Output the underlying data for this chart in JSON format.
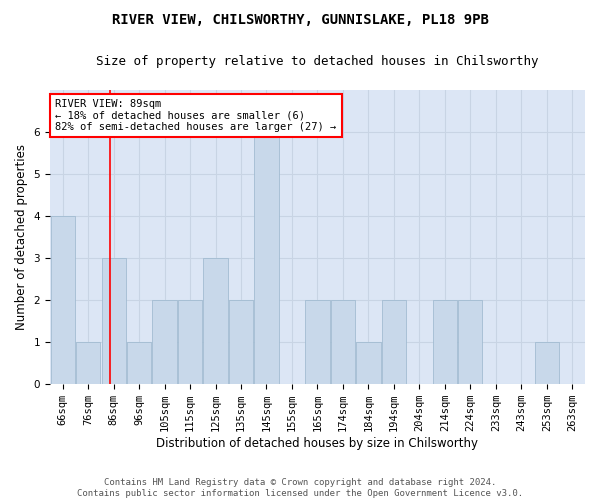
{
  "title": "RIVER VIEW, CHILSWORTHY, GUNNISLAKE, PL18 9PB",
  "subtitle": "Size of property relative to detached houses in Chilsworthy",
  "xlabel": "Distribution of detached houses by size in Chilsworthy",
  "ylabel": "Number of detached properties",
  "categories": [
    "66sqm",
    "76sqm",
    "86sqm",
    "96sqm",
    "105sqm",
    "115sqm",
    "125sqm",
    "135sqm",
    "145sqm",
    "155sqm",
    "165sqm",
    "174sqm",
    "184sqm",
    "194sqm",
    "204sqm",
    "214sqm",
    "224sqm",
    "233sqm",
    "243sqm",
    "253sqm",
    "263sqm"
  ],
  "values": [
    4,
    1,
    3,
    1,
    2,
    2,
    3,
    2,
    6,
    0,
    2,
    2,
    1,
    2,
    0,
    2,
    2,
    0,
    0,
    1,
    0
  ],
  "bar_color": "#c8d8ea",
  "bar_edgecolor": "#9ab5cc",
  "grid_color": "#c8d4e4",
  "background_color": "#dce6f5",
  "annotation_text": "RIVER VIEW: 89sqm\n← 18% of detached houses are smaller (6)\n82% of semi-detached houses are larger (27) →",
  "annotation_box_color": "white",
  "annotation_box_edgecolor": "red",
  "redline_x": 1.85,
  "ylim": [
    0,
    7
  ],
  "yticks": [
    0,
    1,
    2,
    3,
    4,
    5,
    6
  ],
  "footer_line1": "Contains HM Land Registry data © Crown copyright and database right 2024.",
  "footer_line2": "Contains public sector information licensed under the Open Government Licence v3.0.",
  "title_fontsize": 10,
  "subtitle_fontsize": 9,
  "ylabel_fontsize": 8.5,
  "xlabel_fontsize": 8.5,
  "tick_fontsize": 7.5,
  "footer_fontsize": 6.5
}
